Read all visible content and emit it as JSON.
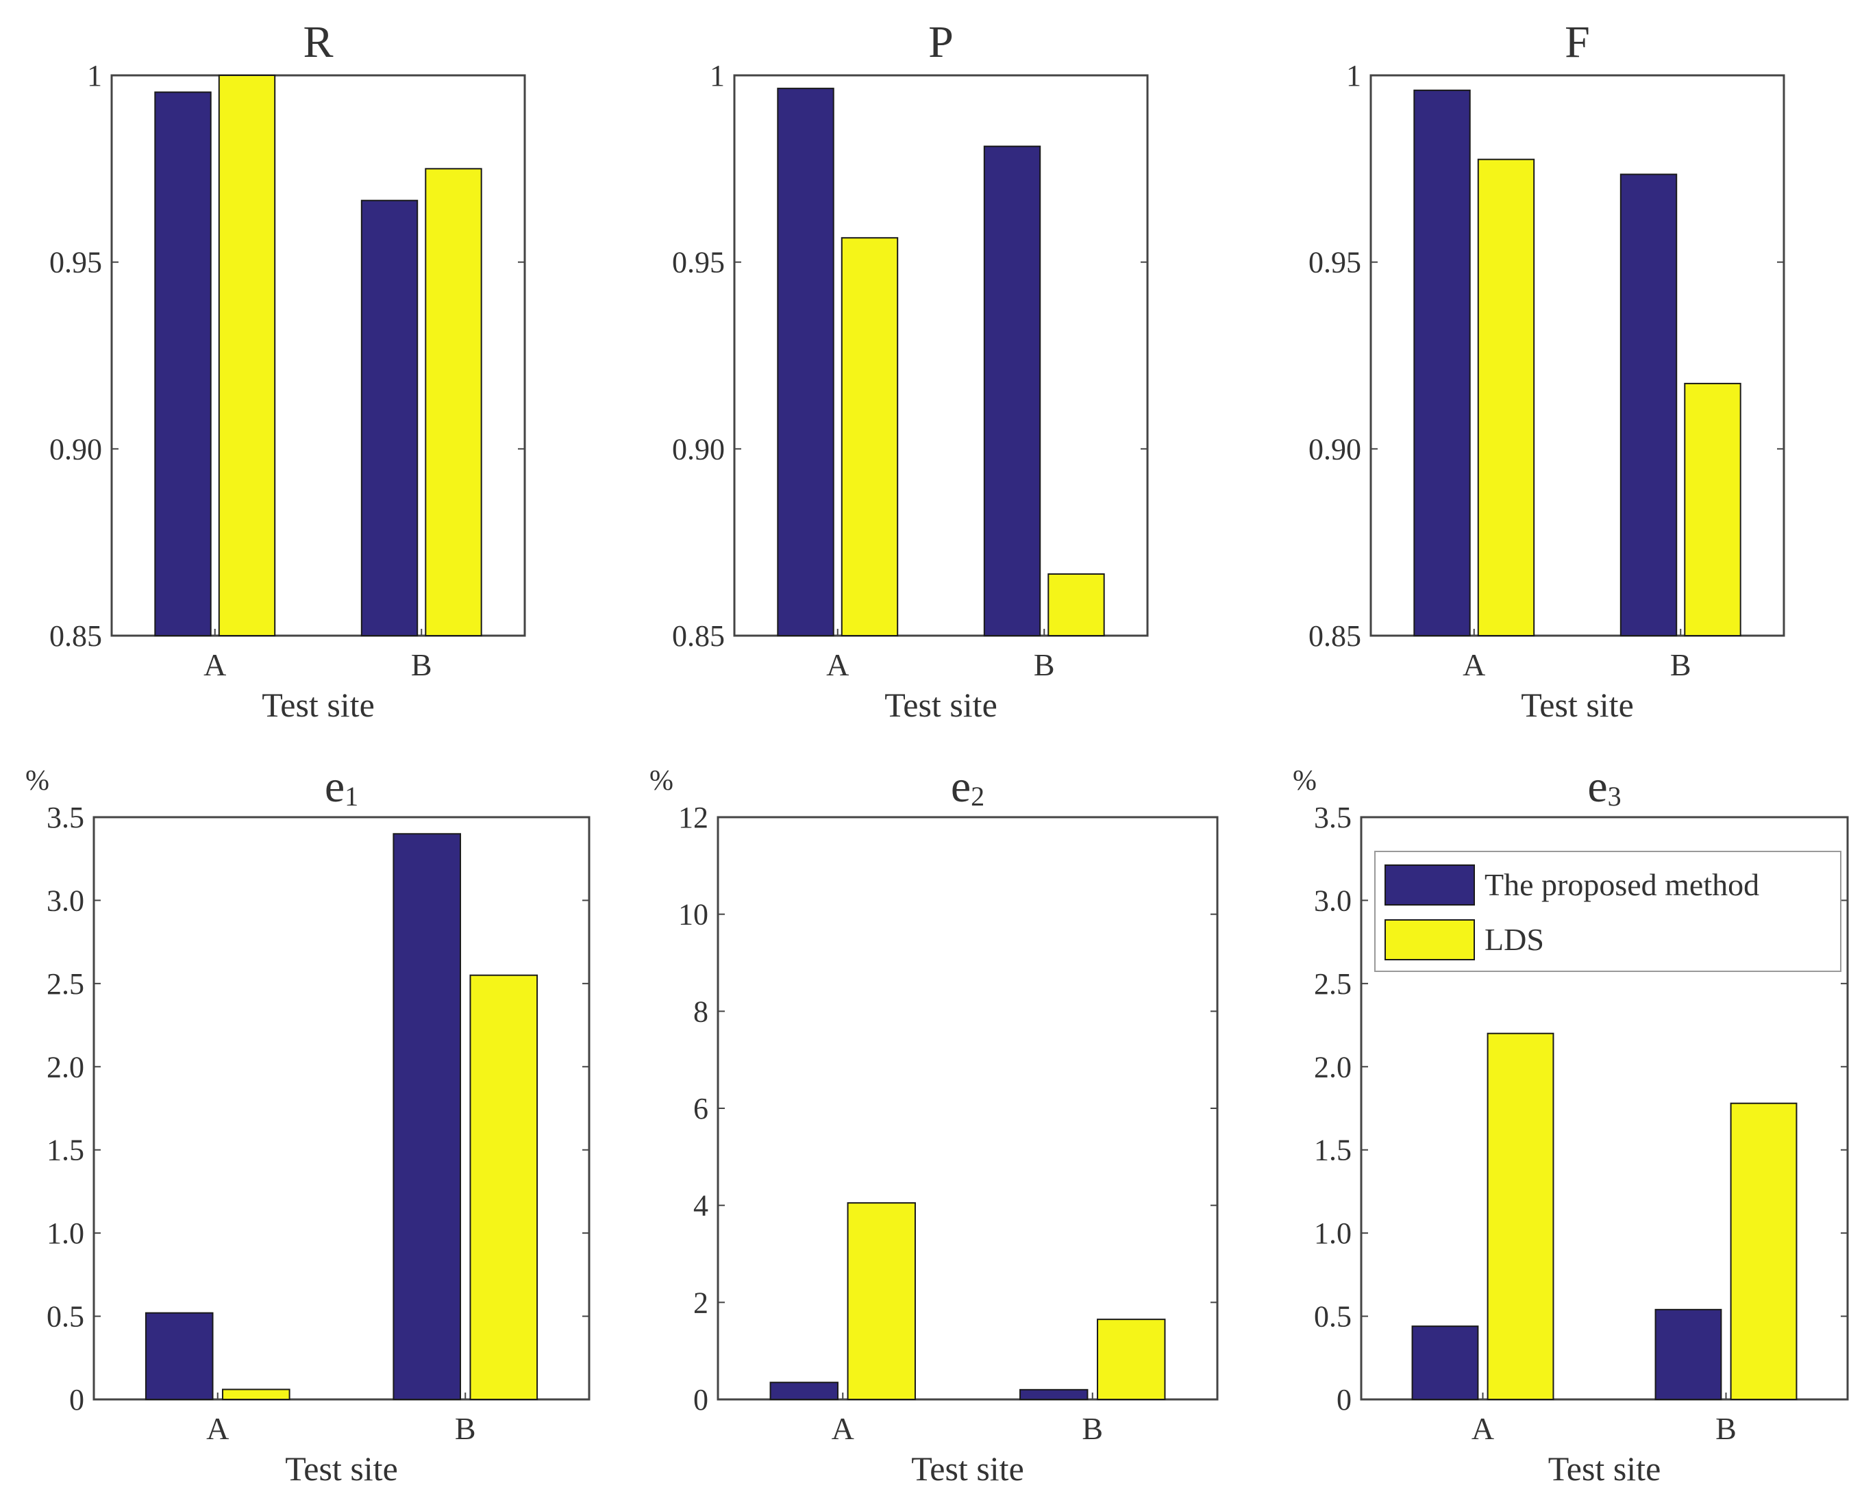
{
  "colors": {
    "series_1": "#32297f",
    "series_2": "#f5f518",
    "axis": "#444444"
  },
  "chart_data": [
    {
      "id": "R",
      "type": "bar",
      "title": "R",
      "title_sub": "",
      "xlabel": "Test site",
      "ylabel": "",
      "unit": "",
      "categories": [
        "A",
        "B"
      ],
      "series": [
        {
          "name": "The proposed method",
          "values": [
            0.9955,
            0.9665
          ]
        },
        {
          "name": "LDS",
          "values": [
            1.0,
            0.975
          ]
        }
      ],
      "ylim": [
        0.85,
        1.0
      ],
      "yticks": [
        0.85,
        0.9,
        0.95,
        1.0
      ],
      "ytick_labels": [
        "0.85",
        "0.90",
        "0.95",
        "1"
      ],
      "grid": false,
      "legend": null
    },
    {
      "id": "P",
      "type": "bar",
      "title": "P",
      "title_sub": "",
      "xlabel": "Test site",
      "ylabel": "",
      "unit": "",
      "categories": [
        "A",
        "B"
      ],
      "series": [
        {
          "name": "The proposed method",
          "values": [
            0.9965,
            0.981
          ]
        },
        {
          "name": "LDS",
          "values": [
            0.9565,
            0.8665
          ]
        }
      ],
      "ylim": [
        0.85,
        1.0
      ],
      "yticks": [
        0.85,
        0.9,
        0.95,
        1.0
      ],
      "ytick_labels": [
        "0.85",
        "0.90",
        "0.95",
        "1"
      ],
      "grid": false,
      "legend": null
    },
    {
      "id": "F",
      "type": "bar",
      "title": "F",
      "title_sub": "",
      "xlabel": "Test site",
      "ylabel": "",
      "unit": "",
      "categories": [
        "A",
        "B"
      ],
      "series": [
        {
          "name": "The proposed method",
          "values": [
            0.996,
            0.9735
          ]
        },
        {
          "name": "LDS",
          "values": [
            0.9775,
            0.9175
          ]
        }
      ],
      "ylim": [
        0.85,
        1.0
      ],
      "yticks": [
        0.85,
        0.9,
        0.95,
        1.0
      ],
      "ytick_labels": [
        "0.85",
        "0.90",
        "0.95",
        "1"
      ],
      "grid": false,
      "legend": null
    },
    {
      "id": "e1",
      "type": "bar",
      "title": "e",
      "title_sub": "1",
      "xlabel": "Test site",
      "ylabel": "",
      "unit": "%",
      "categories": [
        "A",
        "B"
      ],
      "series": [
        {
          "name": "The proposed method",
          "values": [
            0.52,
            3.4
          ]
        },
        {
          "name": "LDS",
          "values": [
            0.06,
            2.55
          ]
        }
      ],
      "ylim": [
        0,
        3.5
      ],
      "yticks": [
        0,
        0.5,
        1.0,
        1.5,
        2.0,
        2.5,
        3.0,
        3.5
      ],
      "ytick_labels": [
        "0",
        "0.5",
        "1.0",
        "1.5",
        "2.0",
        "2.5",
        "3.0",
        "3.5"
      ],
      "grid": false,
      "legend": null
    },
    {
      "id": "e2",
      "type": "bar",
      "title": "e",
      "title_sub": "2",
      "xlabel": "Test site",
      "ylabel": "",
      "unit": "%",
      "categories": [
        "A",
        "B"
      ],
      "series": [
        {
          "name": "The proposed method",
          "values": [
            0.35,
            0.2
          ]
        },
        {
          "name": "LDS",
          "values": [
            4.05,
            1.65
          ]
        }
      ],
      "ylim": [
        0,
        12
      ],
      "yticks": [
        0,
        2,
        4,
        6,
        8,
        10,
        12
      ],
      "ytick_labels": [
        "0",
        "2",
        "4",
        "6",
        "8",
        "10",
        "12"
      ],
      "grid": false,
      "legend": null
    },
    {
      "id": "e3",
      "type": "bar",
      "title": "e",
      "title_sub": "3",
      "xlabel": "Test site",
      "ylabel": "",
      "unit": "%",
      "categories": [
        "A",
        "B"
      ],
      "series": [
        {
          "name": "The proposed method",
          "values": [
            0.44,
            0.54
          ]
        },
        {
          "name": "LDS",
          "values": [
            2.2,
            1.78
          ]
        }
      ],
      "ylim": [
        0,
        3.5
      ],
      "yticks": [
        0,
        0.5,
        1.0,
        1.5,
        2.0,
        2.5,
        3.0,
        3.5
      ],
      "ytick_labels": [
        "0",
        "0.5",
        "1.0",
        "1.5",
        "2.0",
        "2.5",
        "3.0",
        "3.5"
      ],
      "grid": false,
      "legend": {
        "position": "top-right",
        "entries": [
          "The proposed method",
          "LDS"
        ]
      }
    }
  ]
}
